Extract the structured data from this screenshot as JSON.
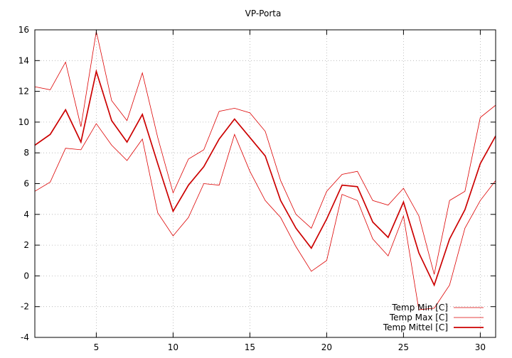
{
  "chart_data": {
    "type": "line",
    "title": "VP-Porta",
    "xlabel": "",
    "ylabel": "",
    "xlim": [
      1,
      31
    ],
    "ylim": [
      -4,
      16
    ],
    "xticks": [
      5,
      10,
      15,
      20,
      25,
      30
    ],
    "yticks": [
      -4,
      -2,
      0,
      2,
      4,
      6,
      8,
      10,
      12,
      14,
      16
    ],
    "grid": true,
    "legend_position": "bottom-right",
    "x": [
      1,
      2,
      3,
      4,
      5,
      6,
      7,
      8,
      9,
      10,
      11,
      12,
      13,
      14,
      15,
      16,
      17,
      18,
      19,
      20,
      21,
      22,
      23,
      24,
      25,
      26,
      27,
      28,
      29,
      30,
      31
    ],
    "series": [
      {
        "name": "Temp Min [C]",
        "color": "#dd0000",
        "width": 0.8,
        "values": [
          5.5,
          6.1,
          8.3,
          8.2,
          9.9,
          8.5,
          7.5,
          8.9,
          4.1,
          2.6,
          3.8,
          6.0,
          5.9,
          9.2,
          6.8,
          4.9,
          3.8,
          1.9,
          0.3,
          1.0,
          5.3,
          4.9,
          2.4,
          1.3,
          3.9,
          -2.2,
          -2.1,
          -0.6,
          3.1,
          4.9,
          6.2
        ]
      },
      {
        "name": "Temp Max [C]",
        "color": "#dd0000",
        "width": 0.8,
        "values": [
          12.3,
          12.1,
          13.9,
          9.7,
          15.9,
          11.4,
          10.1,
          13.2,
          9.0,
          5.4,
          7.6,
          8.2,
          10.7,
          10.9,
          10.6,
          9.4,
          6.2,
          4.0,
          3.1,
          5.5,
          6.6,
          6.8,
          4.9,
          4.6,
          5.7,
          3.9,
          0.1,
          4.9,
          5.5,
          10.3,
          11.1
        ]
      },
      {
        "name": "Temp Mittel [C]",
        "color": "#cc0000",
        "width": 1.7,
        "values": [
          8.5,
          9.2,
          10.8,
          8.7,
          13.3,
          10.1,
          8.7,
          10.5,
          7.3,
          4.2,
          5.9,
          7.1,
          8.9,
          10.2,
          9.0,
          7.8,
          4.9,
          3.1,
          1.8,
          3.7,
          5.9,
          5.8,
          3.5,
          2.5,
          4.8,
          1.5,
          -0.6,
          2.4,
          4.3,
          7.3,
          9.1
        ]
      }
    ]
  }
}
